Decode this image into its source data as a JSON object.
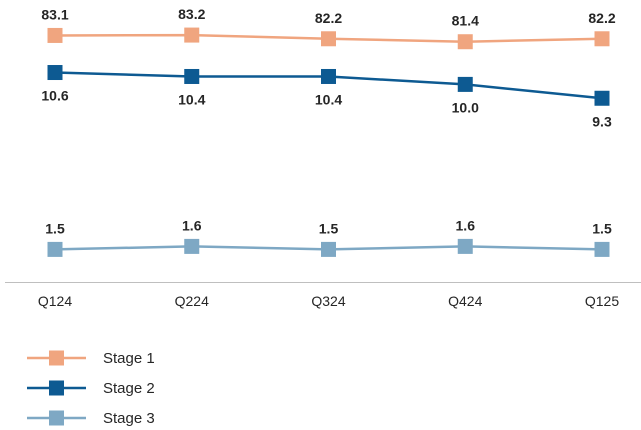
{
  "chart_data": {
    "type": "line",
    "categories": [
      "Q124",
      "Q224",
      "Q324",
      "Q424",
      "Q125"
    ],
    "series": [
      {
        "name": "Stage 1",
        "values": [
          83.1,
          83.2,
          82.2,
          81.4,
          82.2
        ],
        "labels": [
          "83.1",
          "83.2",
          "82.2",
          "81.4",
          "82.2"
        ],
        "color": "#F0A57F",
        "label_position": "above"
      },
      {
        "name": "Stage 2",
        "values": [
          10.6,
          10.4,
          10.4,
          10.0,
          9.3
        ],
        "labels": [
          "10.6",
          "10.4",
          "10.4",
          "10.0",
          "9.3"
        ],
        "color": "#0D5A92",
        "label_position": "below"
      },
      {
        "name": "Stage 3",
        "values": [
          1.5,
          1.6,
          1.5,
          1.6,
          1.5
        ],
        "labels": [
          "1.5",
          "1.6",
          "1.5",
          "1.6",
          "1.5"
        ],
        "color": "#7EA8C4",
        "label_position": "above"
      }
    ],
    "axis_break": "y-axis broken between Stage 1 and Stage 2/3 bands",
    "grid": false,
    "legend_position": "bottom-left",
    "axis_line_color": "#BFBFBF"
  }
}
